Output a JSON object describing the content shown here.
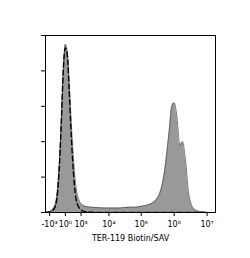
{
  "chart_data": {
    "type": "histogram",
    "x_label": "TER-119 Biotin/SAV",
    "log": "x",
    "tick_labels": "x",
    "xlim": [
      -1500,
      18000000
    ],
    "xticks": [
      {
        "value": -1000,
        "label": "-10³"
      },
      {
        "value": 1,
        "label": "10⁰"
      },
      {
        "value": 1000,
        "label": "10³"
      },
      {
        "value": 10000,
        "label": "10⁴"
      },
      {
        "value": 100000,
        "label": "10⁵"
      },
      {
        "value": 1000000,
        "label": "10⁶"
      },
      {
        "value": 10000000,
        "label": "10⁷"
      }
    ],
    "ylim": [
      0,
      100
    ],
    "yticks": [
      0,
      20,
      40,
      60,
      80,
      100
    ],
    "x": [
      -1500,
      -1000,
      -600,
      -400,
      -250,
      -150,
      -80,
      0,
      80,
      150,
      250,
      400,
      600,
      1000,
      1500,
      2500,
      4000,
      7000,
      10000,
      20000,
      40000,
      70000,
      100000,
      200000,
      350000,
      500000,
      700000,
      850000,
      1000000,
      1200000,
      1500000,
      1800000,
      2200000,
      2800000,
      4000000,
      6000000,
      10000000
    ],
    "series": [
      {
        "type": "area",
        "color": "#8e8e8e",
        "line_style": "solid",
        "values": [
          0,
          0.5,
          3,
          10,
          30,
          55,
          78,
          95,
          90,
          75,
          52,
          28,
          12,
          5,
          3.5,
          3,
          2.8,
          2.5,
          2.5,
          2.5,
          3,
          3,
          3.5,
          5,
          10,
          22,
          45,
          60,
          62,
          55,
          38,
          40,
          30,
          10,
          2,
          0.5,
          0
        ]
      },
      {
        "type": "line",
        "color": "#000000",
        "line_style": "dashed",
        "values": [
          0,
          0.3,
          2,
          8,
          28,
          55,
          80,
          93,
          88,
          70,
          45,
          20,
          6,
          1.5,
          0.5,
          0.2,
          0,
          0,
          0,
          0,
          0,
          0,
          0,
          0,
          0,
          0,
          0,
          0,
          0,
          0,
          0,
          0,
          0,
          0,
          0,
          0,
          0
        ]
      }
    ]
  }
}
